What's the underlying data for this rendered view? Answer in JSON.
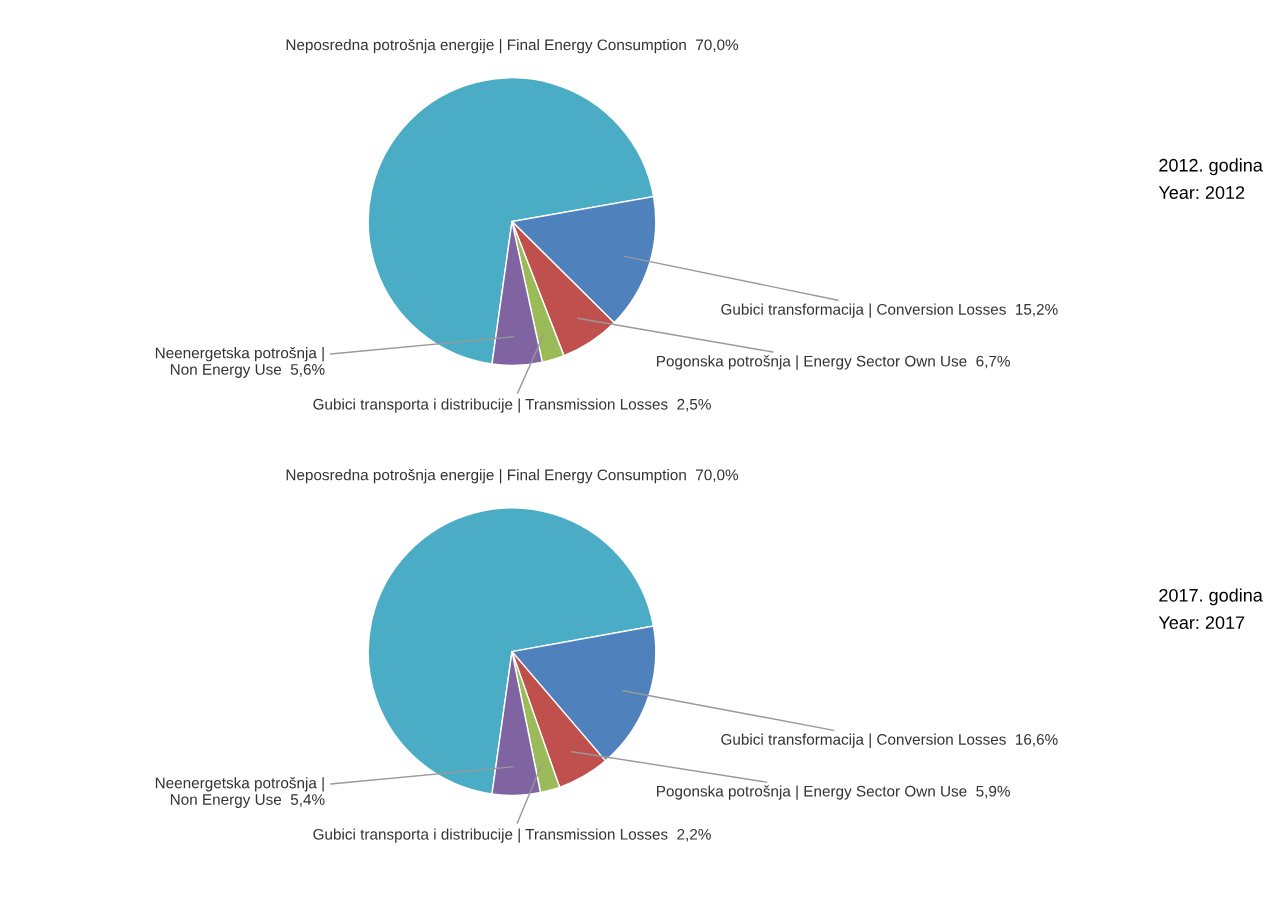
{
  "chart_data": [
    {
      "type": "pie",
      "annotations": [
        "2012. godina\nYear: 2012"
      ],
      "categories": [
        "Neposredna potrošnja energije | Final Energy Consumption",
        "Gubici transformacija | Conversion Losses",
        "Pogonska potrošnja | Energy Sector Own Use",
        "Gubici transporta i distribucije | Transmission Losses",
        "Neenergetska potrošnja |\nNon Energy Use"
      ],
      "values": [
        70.0,
        15.2,
        6.7,
        2.5,
        5.6
      ],
      "value_labels": [
        "70,0%",
        "15,2%",
        "6,7%",
        "2,5%",
        "5,6%"
      ],
      "colors": [
        "#4bacc6",
        "#4f81bd",
        "#c0504d",
        "#9bbb59",
        "#8064a2"
      ]
    },
    {
      "type": "pie",
      "annotations": [
        "2017. godina\nYear: 2017"
      ],
      "categories": [
        "Neposredna potrošnja energije | Final Energy Consumption",
        "Gubici transformacija | Conversion Losses",
        "Pogonska potrošnja | Energy Sector Own Use",
        "Gubici transporta i distribucije | Transmission Losses",
        "Neenergetska potrošnja |\nNon Energy Use"
      ],
      "values": [
        70.0,
        16.6,
        5.9,
        2.2,
        5.4
      ],
      "value_labels": [
        "70,0%",
        "16,6%",
        "5,9%",
        "2,2%",
        "5,4%"
      ],
      "colors": [
        "#4bacc6",
        "#4f81bd",
        "#c0504d",
        "#9bbb59",
        "#8064a2"
      ]
    }
  ]
}
